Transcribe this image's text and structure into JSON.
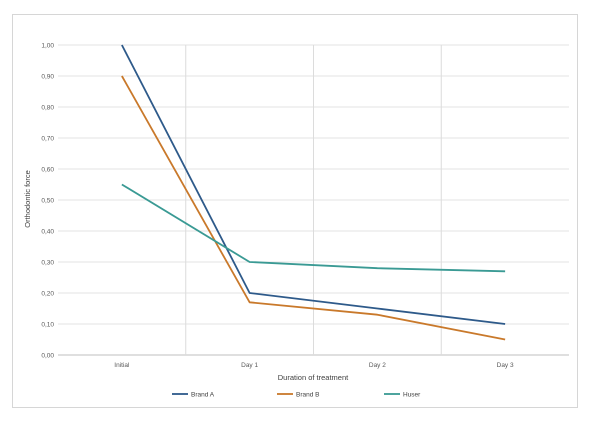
{
  "chart_data": {
    "type": "line",
    "title": "",
    "xlabel": "Duration of treatment",
    "ylabel": "Orthodontic force",
    "categories": [
      "Initial",
      "Day 1",
      "Day 2",
      "Day 3"
    ],
    "ylim": [
      0,
      1
    ],
    "yticks": [
      "0,00",
      "0,10",
      "0,20",
      "0,30",
      "0,40",
      "0,50",
      "0,60",
      "0,70",
      "0,80",
      "0,90",
      "1,00"
    ],
    "grid": true,
    "legend_position": "bottom",
    "series": [
      {
        "name": "Brand A",
        "color": "#2e5a8a",
        "values": [
          1.0,
          0.2,
          0.15,
          0.1
        ]
      },
      {
        "name": "Brand B",
        "color": "#c9792b",
        "values": [
          0.9,
          0.17,
          0.13,
          0.05
        ]
      },
      {
        "name": "Huser",
        "color": "#3a9a94",
        "values": [
          0.55,
          0.3,
          0.28,
          0.27
        ]
      }
    ]
  }
}
